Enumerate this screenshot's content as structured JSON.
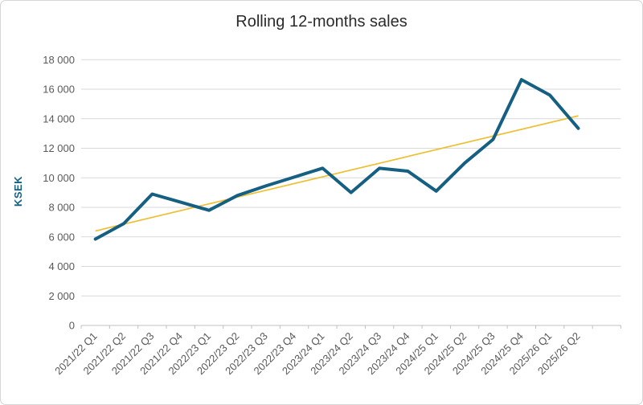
{
  "chart_data": {
    "type": "line",
    "title": "Rolling 12-months sales",
    "ylabel": "KSEK",
    "xlabel": "",
    "categories": [
      "2021/22 Q1",
      "2021/22 Q2",
      "2021/22 Q3",
      "2021/22 Q4",
      "2022/23 Q1",
      "2022/23 Q2",
      "2022/23 Q3",
      "2022/23 Q4",
      "2023/24 Q1",
      "2023/24 Q2",
      "2023/24 Q3",
      "2023/24 Q4",
      "2024/25 Q1",
      "2024/25 Q2",
      "2024/25 Q3",
      "2024/25 Q4",
      "2025/26 Q1",
      "2025/26 Q2"
    ],
    "series": [
      {
        "name": "Rolling 12-months sales",
        "color": "#156082",
        "values": [
          5850,
          6900,
          8900,
          8350,
          7800,
          8800,
          9450,
          10050,
          10650,
          9000,
          10650,
          10450,
          9100,
          11000,
          12600,
          16650,
          15600,
          13350
        ]
      }
    ],
    "trendline": {
      "type": "linear",
      "color": "#edbf33",
      "start_value": 6400,
      "end_value": 14200
    },
    "ylim": [
      0,
      18000
    ],
    "y_tick_step": 2000,
    "y_tick_labels": [
      "0",
      "2 000",
      "4 000",
      "6 000",
      "8 000",
      "10 000",
      "12 000",
      "14 000",
      "16 000",
      "18 000"
    ],
    "grid": true,
    "legend": "none",
    "colors": {
      "grid": "#d9d9d9",
      "axis": "#c0c0c0",
      "tick_label": "#595959",
      "title": "#2b2b2b"
    }
  }
}
